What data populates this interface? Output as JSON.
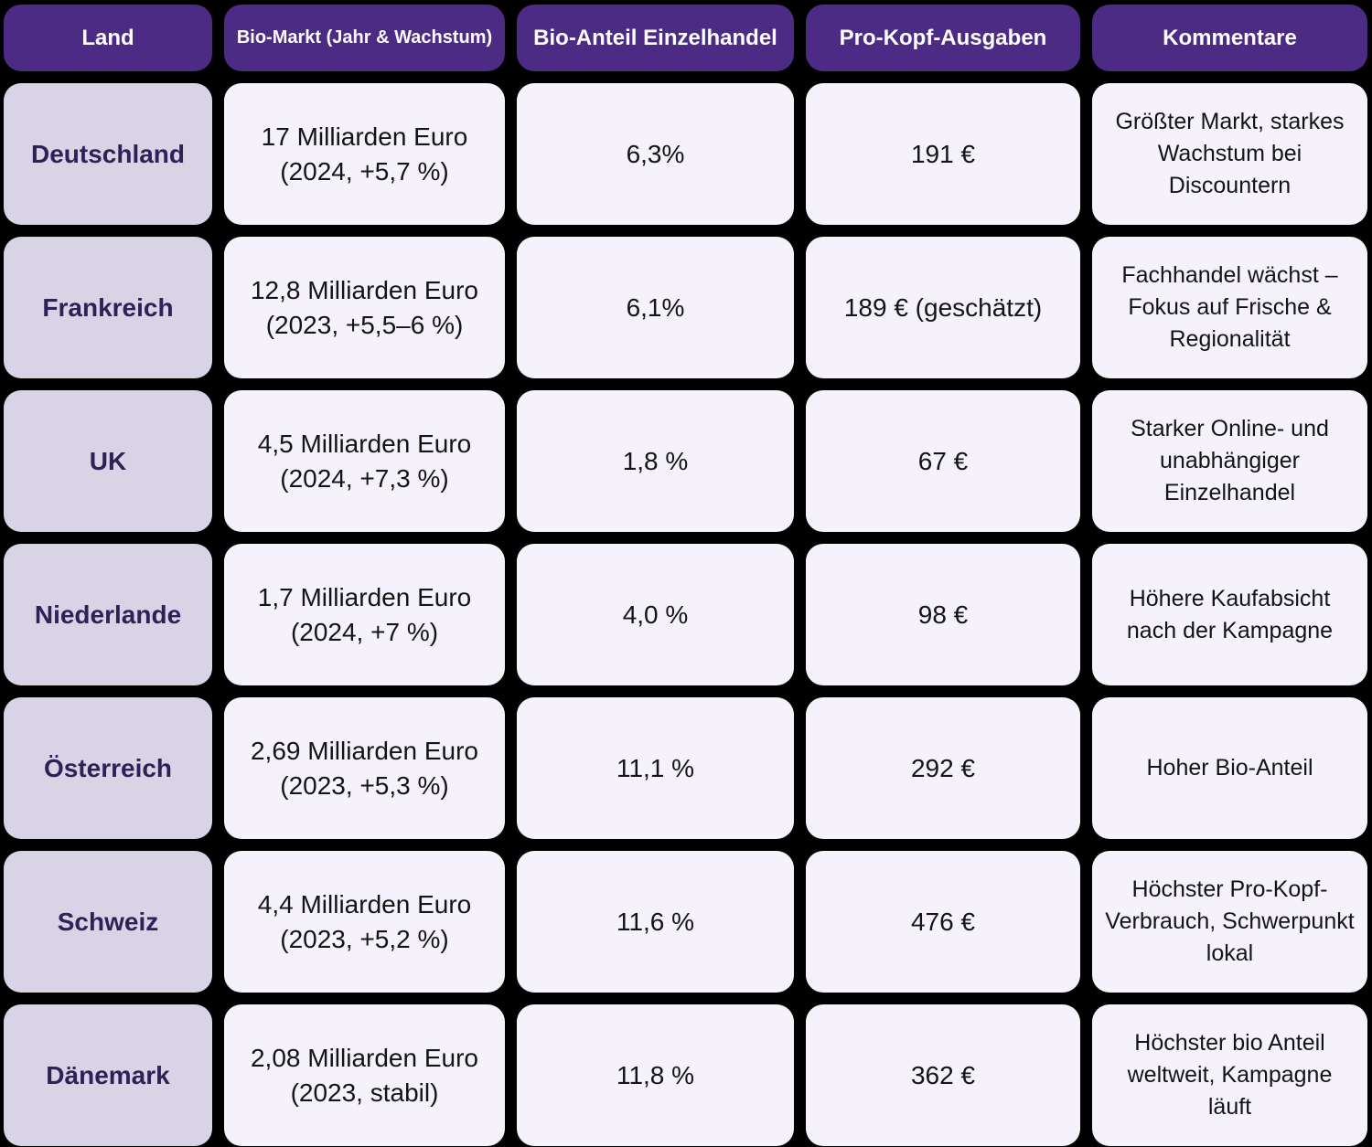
{
  "colors": {
    "background": "#000000",
    "header_bg": "#4C2B85",
    "header_text": "#FFFFFF",
    "country_cell_bg": "#D9D4E5",
    "country_text": "#2E2157",
    "data_cell_bg": "#F5F2FB",
    "data_text": "#141414"
  },
  "table": {
    "columns": [
      {
        "label": "Land"
      },
      {
        "label": "Bio-Markt (Jahr & Wachstum)"
      },
      {
        "label": "Bio-Anteil Einzelhandel"
      },
      {
        "label": "Pro-Kopf-Ausgaben"
      },
      {
        "label": "Kommentare"
      }
    ],
    "rows": [
      {
        "land": "Deutschland",
        "markt_value": "17 Milliarden Euro",
        "markt_detail": "(2024, +5,7 %)",
        "anteil": "6,3%",
        "prokopf": "191 €",
        "kommentar": "Größter Markt, starkes Wachstum bei Discountern"
      },
      {
        "land": "Frankreich",
        "markt_value": "12,8 Milliarden Euro",
        "markt_detail": "(2023, +5,5–6 %)",
        "anteil": "6,1%",
        "prokopf": "189 € (geschätzt)",
        "kommentar": "Fachhandel wächst – Fokus auf Frische & Regionalität"
      },
      {
        "land": "UK",
        "markt_value": "4,5 Milliarden Euro",
        "markt_detail": "(2024, +7,3 %)",
        "anteil": "1,8 %",
        "prokopf": "67 €",
        "kommentar": "Starker Online- und unabhängiger Einzelhandel"
      },
      {
        "land": "Niederlande",
        "markt_value": "1,7 Milliarden Euro",
        "markt_detail": "(2024, +7 %)",
        "anteil": "4,0 %",
        "prokopf": "98 €",
        "kommentar": "Höhere Kaufabsicht nach der Kampagne"
      },
      {
        "land": "Österreich",
        "markt_value": "2,69 Milliarden Euro",
        "markt_detail": "(2023, +5,3 %)",
        "anteil": "11,1 %",
        "prokopf": "292 €",
        "kommentar": "Hoher Bio-Anteil"
      },
      {
        "land": "Schweiz",
        "markt_value": "4,4 Milliarden Euro",
        "markt_detail": "(2023, +5,2 %)",
        "anteil": "11,6 %",
        "prokopf": "476 €",
        "kommentar": "Höchster Pro-Kopf-Verbrauch, Schwerpunkt lokal"
      },
      {
        "land": "Dänemark",
        "markt_value": "2,08 Milliarden Euro",
        "markt_detail": "(2023, stabil)",
        "anteil": "11,8 %",
        "prokopf": "362 €",
        "kommentar": "Höchster bio Anteil weltweit, Kampagne läuft"
      }
    ]
  }
}
